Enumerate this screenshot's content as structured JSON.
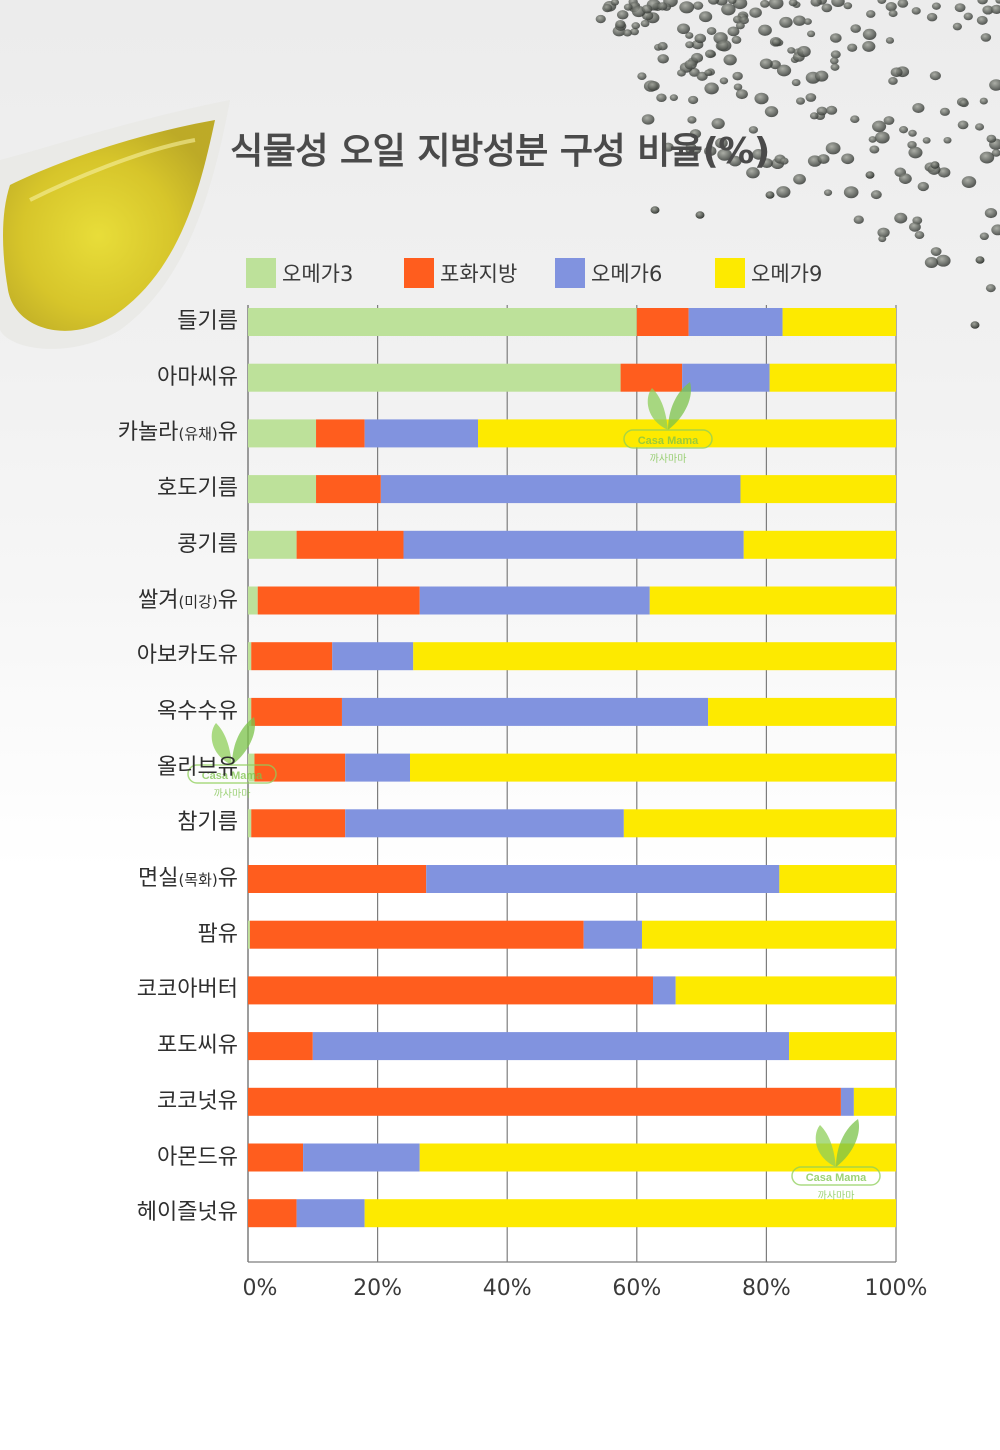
{
  "title": "식물성 오일 지방성분 구성 비율(%)",
  "colors": {
    "omega3": "#bde19a",
    "saturated": "#ff5d1e",
    "omega6": "#8193df",
    "omega9": "#fdea00"
  },
  "chart_data": {
    "type": "bar",
    "orientation": "horizontal",
    "stacked": true,
    "title": "식물성 오일 지방성분 구성 비율(%)",
    "xlim": [
      0,
      100
    ],
    "x_ticks": [
      "0%",
      "20%",
      "40%",
      "60%",
      "80%",
      "100%"
    ],
    "grid": true,
    "legend_position": "top",
    "categories": [
      {
        "main": "들기름"
      },
      {
        "main": "아마씨유"
      },
      {
        "main": "카놀라",
        "paren": "(유채)",
        "suffix": "유"
      },
      {
        "main": "호도기름"
      },
      {
        "main": "콩기름"
      },
      {
        "main": "쌀겨",
        "paren": "(미강)",
        "suffix": "유"
      },
      {
        "main": "아보카도유"
      },
      {
        "main": "옥수수유"
      },
      {
        "main": "올리브유"
      },
      {
        "main": "참기름"
      },
      {
        "main": "면실",
        "paren": "(목화)",
        "suffix": "유"
      },
      {
        "main": "팜유"
      },
      {
        "main": "코코아버터"
      },
      {
        "main": "포도씨유"
      },
      {
        "main": "코코넛유"
      },
      {
        "main": "아몬드유"
      },
      {
        "main": "헤이즐넛유"
      }
    ],
    "series": [
      {
        "name": "오메가3",
        "color": "#bde19a",
        "values": [
          60,
          57.5,
          10.5,
          10.5,
          7.5,
          1.5,
          0.5,
          0.5,
          1,
          0.5,
          0,
          0.3,
          0,
          0,
          0,
          0,
          0
        ]
      },
      {
        "name": "포화지방",
        "color": "#ff5d1e",
        "values": [
          8,
          9.5,
          7.5,
          10,
          16.5,
          25,
          12.5,
          14,
          14,
          14.5,
          27.5,
          51.5,
          62.5,
          10,
          91.5,
          8.5,
          7.5
        ]
      },
      {
        "name": "오메가6",
        "color": "#8193df",
        "values": [
          14.5,
          13.5,
          17.5,
          55.5,
          52.5,
          35.5,
          12.5,
          56.5,
          10,
          43,
          54.5,
          9,
          3.5,
          73.5,
          2,
          18,
          10.5
        ]
      },
      {
        "name": "오메가9",
        "color": "#fdea00",
        "values": [
          17.5,
          19.5,
          64.5,
          24,
          23.5,
          38,
          74.5,
          29,
          75,
          42,
          18,
          39.2,
          34,
          16.5,
          6.5,
          73.5,
          82
        ]
      }
    ]
  },
  "watermark": {
    "brand": "Casa Mama",
    "brand_kr": "까사마마"
  }
}
